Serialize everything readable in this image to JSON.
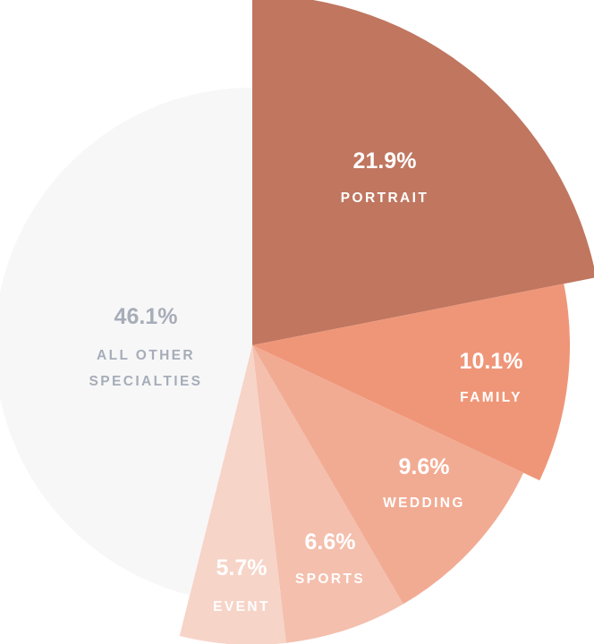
{
  "chart_data": {
    "type": "pie",
    "variant": "polar-area (radius varies per slice)",
    "slices": [
      {
        "label": "PORTRAIT",
        "value_label": "21.9%",
        "value": 21.9,
        "color": "#c0765f",
        "text_color": "#ffffff"
      },
      {
        "label": "FAMILY",
        "value_label": "10.1%",
        "value": 10.1,
        "color": "#ef9679",
        "text_color": "#ffffff"
      },
      {
        "label": "WEDDING",
        "value_label": "9.6%",
        "value": 9.6,
        "color": "#f2ab93",
        "text_color": "#ffffff"
      },
      {
        "label": "SPORTS",
        "value_label": "6.6%",
        "value": 6.6,
        "color": "#f4bfad",
        "text_color": "#ffffff"
      },
      {
        "label": "EVENT",
        "value_label": "5.7%",
        "value": 5.7,
        "color": "#f7d4c8",
        "text_color": "#ffffff"
      },
      {
        "label_lines": [
          "ALL OTHER",
          "SPECIALTIES"
        ],
        "value_label": "46.1%",
        "value": 46.1,
        "color": "#f7f7f8",
        "text_color": "#a6adb8"
      }
    ]
  }
}
